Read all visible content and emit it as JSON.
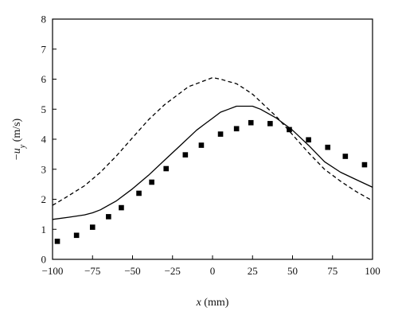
{
  "chart_data": {
    "type": "line",
    "title": "",
    "xlabel": {
      "var": "x",
      "unit": " (mm)"
    },
    "ylabel": {
      "prefix": "−",
      "var": "u",
      "sub": "y",
      "unit": " (m/s)"
    },
    "xlim": [
      -100,
      100
    ],
    "ylim": [
      0,
      8
    ],
    "xticks": [
      -100,
      -75,
      -50,
      -25,
      0,
      25,
      50,
      75,
      100
    ],
    "yticks": [
      0,
      1,
      2,
      3,
      4,
      5,
      6,
      7,
      8
    ],
    "xtick_labels": [
      "−100",
      "−75",
      "−50",
      "−25",
      "0",
      "25",
      "50",
      "75",
      "100"
    ],
    "ytick_labels": [
      "0",
      "1",
      "2",
      "3",
      "4",
      "5",
      "6",
      "7",
      "8"
    ],
    "grid": false,
    "legend": "none",
    "series": [
      {
        "style": "dashed-line",
        "color": "#000000",
        "x": [
          -100,
          -92,
          -80,
          -70,
          -60,
          -50,
          -40,
          -30,
          -20,
          -15,
          -10,
          -5,
          0,
          5,
          10,
          15,
          20,
          25,
          30,
          40,
          50,
          60,
          70,
          80,
          90,
          100
        ],
        "y": [
          1.8,
          2.05,
          2.45,
          2.9,
          3.45,
          4.05,
          4.65,
          5.15,
          5.55,
          5.75,
          5.85,
          5.95,
          6.05,
          6.0,
          5.92,
          5.85,
          5.68,
          5.5,
          5.25,
          4.75,
          4.15,
          3.55,
          3.0,
          2.6,
          2.25,
          1.95
        ]
      },
      {
        "style": "solid-line",
        "color": "#000000",
        "x": [
          -100,
          -90,
          -80,
          -75,
          -70,
          -60,
          -50,
          -40,
          -30,
          -20,
          -10,
          -5,
          0,
          5,
          10,
          15,
          20,
          25,
          30,
          35,
          40,
          50,
          60,
          70,
          80,
          90,
          100
        ],
        "y": [
          1.33,
          1.4,
          1.48,
          1.55,
          1.65,
          1.95,
          2.35,
          2.8,
          3.3,
          3.8,
          4.3,
          4.5,
          4.7,
          4.9,
          5.0,
          5.1,
          5.1,
          5.1,
          5.0,
          4.85,
          4.7,
          4.3,
          3.8,
          3.25,
          2.9,
          2.65,
          2.4
        ]
      },
      {
        "style": "square-markers",
        "color": "#000000",
        "x": [
          -97,
          -85,
          -75,
          -65,
          -57,
          -46,
          -38,
          -29,
          -17,
          -7,
          5,
          15,
          24,
          36,
          48,
          60,
          72,
          83,
          95
        ],
        "y": [
          0.6,
          0.8,
          1.07,
          1.42,
          1.72,
          2.2,
          2.57,
          3.02,
          3.48,
          3.8,
          4.17,
          4.35,
          4.55,
          4.52,
          4.32,
          3.98,
          3.73,
          3.43,
          3.15
        ]
      }
    ]
  }
}
